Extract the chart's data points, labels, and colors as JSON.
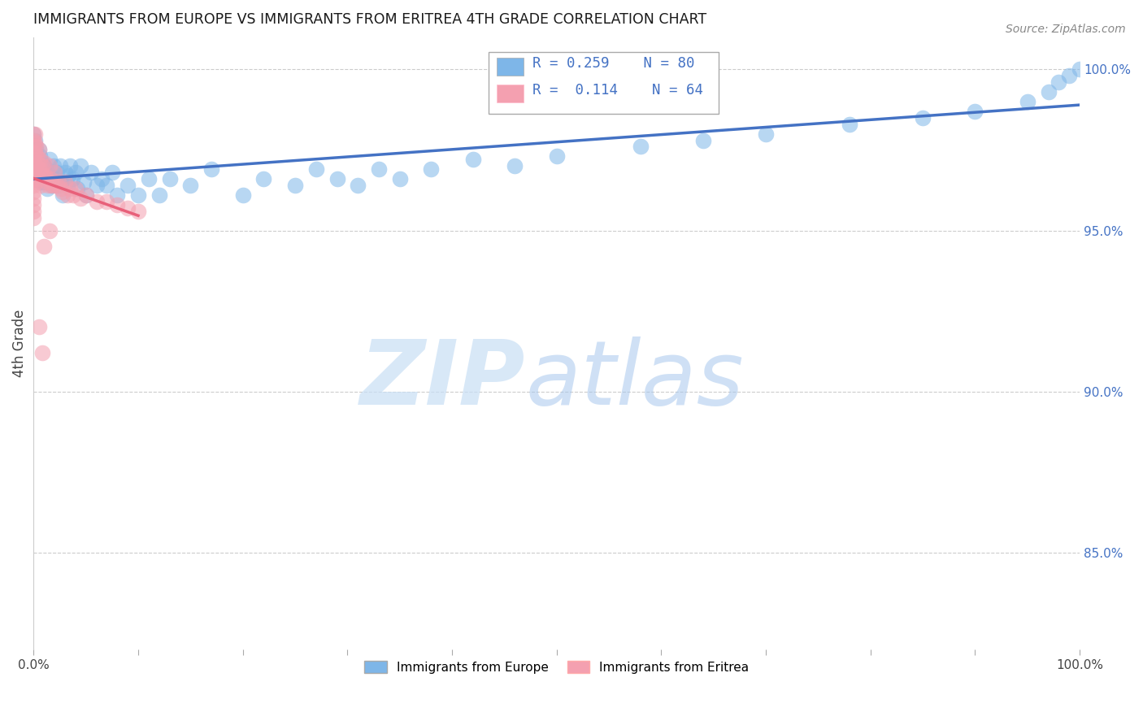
{
  "title": "IMMIGRANTS FROM EUROPE VS IMMIGRANTS FROM ERITREA 4TH GRADE CORRELATION CHART",
  "source": "Source: ZipAtlas.com",
  "ylabel": "4th Grade",
  "legend_blue_label": "Immigrants from Europe",
  "legend_pink_label": "Immigrants from Eritrea",
  "legend_blue_r": "0.259",
  "legend_blue_n": "80",
  "legend_pink_r": "0.114",
  "legend_pink_n": "64",
  "blue_color": "#7EB6E8",
  "pink_color": "#F4A0B0",
  "blue_line_color": "#4472C4",
  "pink_line_color": "#E8607A",
  "xlim": [
    0.0,
    1.0
  ],
  "ylim": [
    0.82,
    1.01
  ],
  "yticks": [
    0.85,
    0.9,
    0.95,
    1.0
  ],
  "ytick_labels": [
    "85.0%",
    "90.0%",
    "95.0%",
    "100.0%"
  ],
  "xtick_positions": [
    0.0,
    0.1,
    0.2,
    0.3,
    0.4,
    0.5,
    0.6,
    0.7,
    0.8,
    0.9,
    1.0
  ],
  "blue_x": [
    0.0,
    0.0,
    0.001,
    0.001,
    0.001,
    0.002,
    0.002,
    0.003,
    0.003,
    0.004,
    0.005,
    0.005,
    0.006,
    0.007,
    0.007,
    0.008,
    0.009,
    0.01,
    0.01,
    0.011,
    0.012,
    0.013,
    0.014,
    0.015,
    0.016,
    0.017,
    0.018,
    0.019,
    0.02,
    0.022,
    0.023,
    0.025,
    0.026,
    0.028,
    0.03,
    0.032,
    0.033,
    0.035,
    0.037,
    0.04,
    0.042,
    0.045,
    0.048,
    0.05,
    0.055,
    0.06,
    0.065,
    0.07,
    0.075,
    0.08,
    0.09,
    0.1,
    0.11,
    0.12,
    0.13,
    0.15,
    0.17,
    0.2,
    0.22,
    0.25,
    0.27,
    0.29,
    0.31,
    0.33,
    0.35,
    0.38,
    0.42,
    0.46,
    0.5,
    0.58,
    0.64,
    0.7,
    0.78,
    0.85,
    0.9,
    0.95,
    0.97,
    0.98,
    0.99,
    1.0
  ],
  "blue_y": [
    0.98,
    0.975,
    0.978,
    0.972,
    0.968,
    0.975,
    0.97,
    0.972,
    0.968,
    0.971,
    0.975,
    0.966,
    0.973,
    0.969,
    0.965,
    0.971,
    0.967,
    0.97,
    0.965,
    0.968,
    0.969,
    0.963,
    0.967,
    0.972,
    0.967,
    0.965,
    0.964,
    0.97,
    0.966,
    0.968,
    0.964,
    0.97,
    0.965,
    0.961,
    0.968,
    0.964,
    0.967,
    0.97,
    0.966,
    0.968,
    0.963,
    0.97,
    0.965,
    0.961,
    0.968,
    0.964,
    0.966,
    0.964,
    0.968,
    0.961,
    0.964,
    0.961,
    0.966,
    0.961,
    0.966,
    0.964,
    0.969,
    0.961,
    0.966,
    0.964,
    0.969,
    0.966,
    0.964,
    0.969,
    0.966,
    0.969,
    0.972,
    0.97,
    0.973,
    0.976,
    0.978,
    0.98,
    0.983,
    0.985,
    0.987,
    0.99,
    0.993,
    0.996,
    0.998,
    1.0
  ],
  "pink_x": [
    0.0,
    0.0,
    0.0,
    0.0,
    0.0,
    0.0,
    0.0,
    0.0,
    0.0,
    0.0,
    0.0,
    0.0,
    0.0,
    0.0,
    0.001,
    0.001,
    0.001,
    0.001,
    0.001,
    0.002,
    0.002,
    0.002,
    0.003,
    0.003,
    0.004,
    0.004,
    0.005,
    0.005,
    0.006,
    0.007,
    0.007,
    0.008,
    0.009,
    0.01,
    0.011,
    0.012,
    0.013,
    0.014,
    0.015,
    0.016,
    0.017,
    0.018,
    0.019,
    0.02,
    0.022,
    0.024,
    0.026,
    0.028,
    0.03,
    0.032,
    0.035,
    0.038,
    0.04,
    0.045,
    0.05,
    0.06,
    0.07,
    0.08,
    0.09,
    0.1,
    0.015,
    0.01,
    0.005,
    0.008
  ],
  "pink_y": [
    0.98,
    0.978,
    0.976,
    0.974,
    0.972,
    0.97,
    0.968,
    0.966,
    0.964,
    0.962,
    0.96,
    0.958,
    0.956,
    0.954,
    0.98,
    0.977,
    0.974,
    0.97,
    0.966,
    0.976,
    0.97,
    0.965,
    0.973,
    0.967,
    0.971,
    0.966,
    0.975,
    0.969,
    0.972,
    0.969,
    0.964,
    0.97,
    0.967,
    0.971,
    0.967,
    0.966,
    0.965,
    0.964,
    0.97,
    0.966,
    0.964,
    0.965,
    0.964,
    0.968,
    0.964,
    0.965,
    0.963,
    0.962,
    0.965,
    0.961,
    0.963,
    0.961,
    0.963,
    0.96,
    0.961,
    0.959,
    0.959,
    0.958,
    0.957,
    0.956,
    0.95,
    0.945,
    0.92,
    0.912
  ],
  "blue_line_x": [
    0.0,
    1.0
  ],
  "blue_line_y": [
    0.963,
    1.0
  ],
  "pink_line_x": [
    0.0,
    0.1
  ],
  "pink_line_y": [
    0.962,
    0.968
  ]
}
